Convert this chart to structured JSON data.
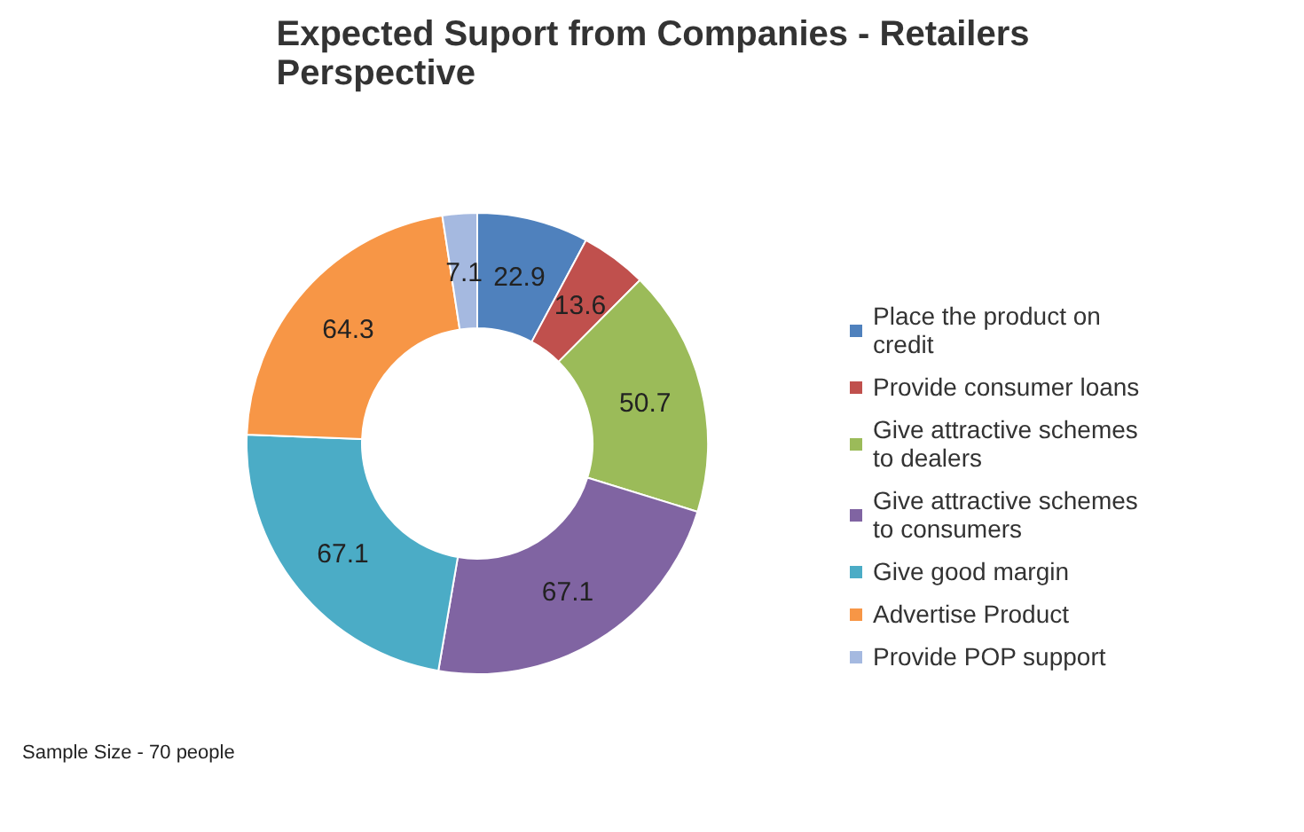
{
  "chart_data": {
    "type": "donut",
    "title": "Expected Suport from Companies - Retailers Perspective",
    "categories": [
      "Place the product on credit",
      "Provide consumer loans",
      "Give attractive schemes to dealers",
      "Give attractive schemes to consumers",
      "Give good margin",
      "Advertise Product",
      "Provide POP support"
    ],
    "values": [
      22.9,
      13.6,
      50.7,
      67.1,
      67.1,
      64.3,
      7.1
    ],
    "colors": [
      "#4f81bd",
      "#c0504d",
      "#9bbb59",
      "#8064a2",
      "#4bacc6",
      "#f79646",
      "#a5b9e0"
    ],
    "data_labels": true,
    "legend": "right",
    "annotations": [
      "Sample Size - 70 people"
    ]
  }
}
